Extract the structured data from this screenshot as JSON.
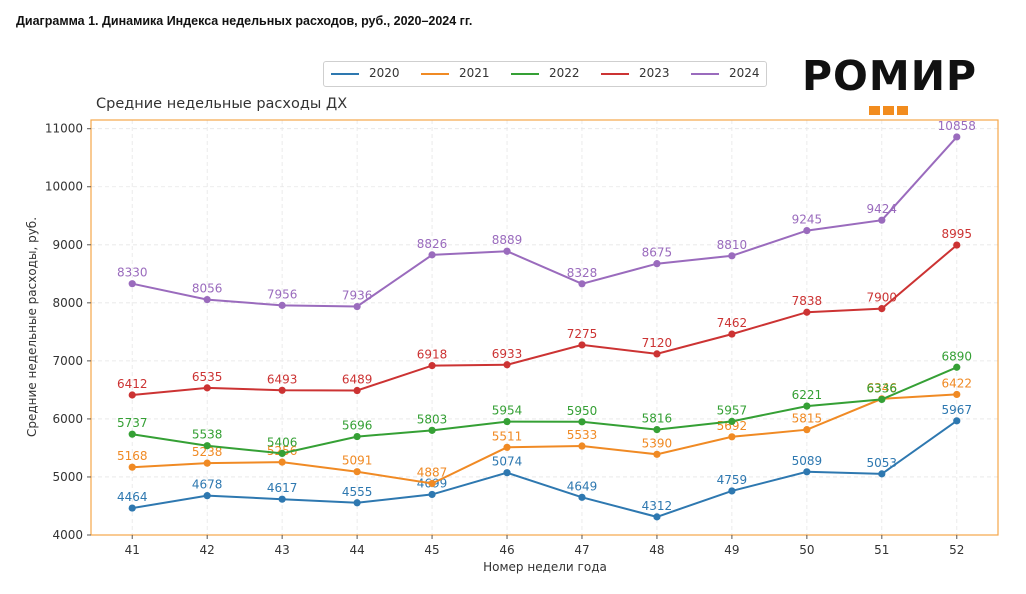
{
  "page": {
    "heading": "Диаграмма 1. Динамика Индекса недельных расходов, руб., 2020–2024 гг.",
    "logo_text": "РОМИР",
    "logo_color": "#f28c1e"
  },
  "chart_data": {
    "type": "line",
    "title": "Средние недельные расходы ДХ",
    "xlabel": "Номер недели года",
    "ylabel": "Средние недельные расходы, руб.",
    "x": [
      41,
      42,
      43,
      44,
      45,
      46,
      47,
      48,
      49,
      50,
      51,
      52
    ],
    "xlim": [
      40.45,
      52.55
    ],
    "ylim": [
      4000,
      11150
    ],
    "yticks": [
      4000,
      5000,
      6000,
      7000,
      8000,
      9000,
      10000,
      11000
    ],
    "grid": true,
    "legend_position": "top",
    "frame_color": "#f5a64a",
    "series": [
      {
        "name": "2020",
        "color": "#2e78b0",
        "values": [
          4464,
          4678,
          4617,
          4555,
          4699,
          5074,
          4649,
          4312,
          4759,
          5089,
          5053,
          5967
        ]
      },
      {
        "name": "2021",
        "color": "#f08a24",
        "values": [
          5168,
          5238,
          5256,
          5091,
          4887,
          5511,
          5533,
          5390,
          5692,
          5815,
          6346,
          6422
        ]
      },
      {
        "name": "2022",
        "color": "#35a035",
        "values": [
          5737,
          5538,
          5406,
          5696,
          5803,
          5954,
          5950,
          5816,
          5957,
          6221,
          6336,
          6890
        ]
      },
      {
        "name": "2023",
        "color": "#cc3333",
        "values": [
          6412,
          6535,
          6493,
          6489,
          6918,
          6933,
          7275,
          7120,
          7462,
          7838,
          7900,
          8995
        ]
      },
      {
        "name": "2024",
        "color": "#9a6bbd",
        "values": [
          8330,
          8056,
          7956,
          7936,
          8826,
          8889,
          8328,
          8675,
          8810,
          9245,
          9424,
          10858
        ]
      }
    ]
  }
}
